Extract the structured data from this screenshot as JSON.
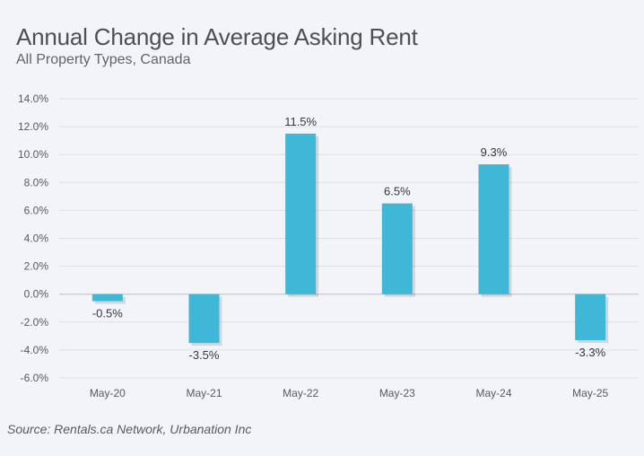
{
  "header": {
    "title": "Annual Change in Average Asking Rent",
    "subtitle": "All Property Types, Canada"
  },
  "footer": {
    "source": "Source: Rentals.ca Network, Urbanation Inc"
  },
  "colors": {
    "bar": "#3fb7d6",
    "grid": "#dcdfe4",
    "background": "#f3f4f7"
  },
  "chart_data": {
    "type": "bar",
    "title": "Annual Change in Average Asking Rent",
    "subtitle": "All Property Types, Canada",
    "categories": [
      "May-20",
      "May-21",
      "May-22",
      "May-23",
      "May-24",
      "May-25"
    ],
    "values": [
      -0.5,
      -3.5,
      11.5,
      6.5,
      9.3,
      -3.3
    ],
    "data_labels": [
      "-0.5%",
      "-3.5%",
      "11.5%",
      "6.5%",
      "9.3%",
      "-3.3%"
    ],
    "ylim": [
      -6,
      14
    ],
    "yticks": [
      14,
      12,
      10,
      8,
      6,
      4,
      2,
      0,
      -2,
      -4,
      -6
    ],
    "ytick_labels": [
      "14.0%",
      "12.0%",
      "10.0%",
      "8.0%",
      "6.0%",
      "4.0%",
      "2.0%",
      "0.0%",
      "-2.0%",
      "-4.0%",
      "-6.0%"
    ],
    "xlabel": "",
    "ylabel": "",
    "grid": true,
    "legend": "none"
  }
}
